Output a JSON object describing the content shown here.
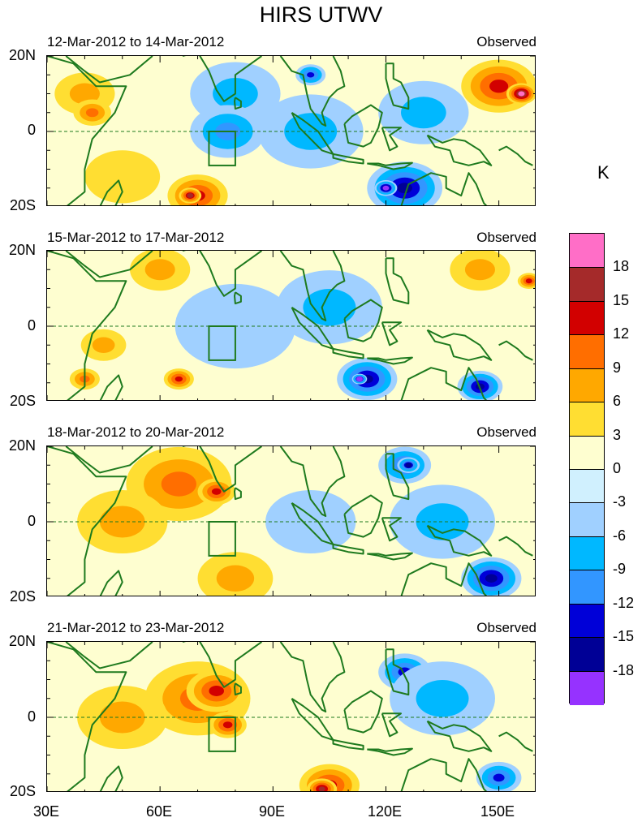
{
  "title": "HIRS UTWV",
  "colorbar": {
    "unit": "K",
    "labels": [
      "18",
      "15",
      "12",
      "9",
      "6",
      "3",
      "0",
      "-3",
      "-6",
      "-9",
      "-12",
      "-15",
      "-18"
    ],
    "colors": [
      "#ff6ec7",
      "#a52a2a",
      "#d20000",
      "#ff6e00",
      "#ffa800",
      "#ffde32",
      "#fefed0",
      "#d0f0fe",
      "#a0d0ff",
      "#00b8ff",
      "#3296ff",
      "#0000d8",
      "#000096",
      "#9632ff"
    ]
  },
  "axes": {
    "y_labels": [
      "20N",
      "0",
      "20S"
    ],
    "x_labels": [
      "30E",
      "60E",
      "90E",
      "120E",
      "150E"
    ],
    "lon_range": [
      30,
      160
    ],
    "lat_range": [
      -20,
      20
    ]
  },
  "panels": [
    {
      "date_range": "12-Mar-2012 to 14-Mar-2012",
      "label": "Observed"
    },
    {
      "date_range": "15-Mar-2012 to 17-Mar-2012",
      "label": "Observed"
    },
    {
      "date_range": "18-Mar-2012 to 20-Mar-2012",
      "label": "Observed"
    },
    {
      "date_range": "21-Mar-2012 to 23-Mar-2012",
      "label": "Observed"
    }
  ],
  "map_data": {
    "field": "UTWV anomaly",
    "units": "K",
    "region_box": {
      "lon": [
        73,
        80
      ],
      "lat": [
        -6,
        0
      ]
    },
    "panels_anomaly_blobs": [
      [
        {
          "lon": 40,
          "lat": 10,
          "value": 6,
          "r": 8
        },
        {
          "lon": 42,
          "lat": 5,
          "value": 9,
          "r": 5
        },
        {
          "lon": 50,
          "lat": -12,
          "value": 3,
          "r": 10
        },
        {
          "lon": 70,
          "lat": -17,
          "value": 12,
          "r": 8
        },
        {
          "lon": 68,
          "lat": -17,
          "value": 15,
          "r": 3
        },
        {
          "lon": 80,
          "lat": 10,
          "value": -6,
          "r": 12
        },
        {
          "lon": 78,
          "lat": 0,
          "value": -9,
          "r": 10
        },
        {
          "lon": 100,
          "lat": 15,
          "value": -12,
          "r": 4
        },
        {
          "lon": 100,
          "lat": 0,
          "value": -6,
          "r": 14
        },
        {
          "lon": 125,
          "lat": -15,
          "value": -15,
          "r": 10
        },
        {
          "lon": 120,
          "lat": -15,
          "value": -18,
          "r": 3
        },
        {
          "lon": 130,
          "lat": 5,
          "value": -6,
          "r": 12
        },
        {
          "lon": 150,
          "lat": 12,
          "value": 12,
          "r": 10
        },
        {
          "lon": 156,
          "lat": 10,
          "value": 18,
          "r": 4
        }
      ],
      [
        {
          "lon": 60,
          "lat": 15,
          "value": 6,
          "r": 8
        },
        {
          "lon": 45,
          "lat": -5,
          "value": 6,
          "r": 6
        },
        {
          "lon": 40,
          "lat": -14,
          "value": 9,
          "r": 4
        },
        {
          "lon": 65,
          "lat": -14,
          "value": 12,
          "r": 4
        },
        {
          "lon": 80,
          "lat": 0,
          "value": -3,
          "r": 16
        },
        {
          "lon": 105,
          "lat": 5,
          "value": -6,
          "r": 14
        },
        {
          "lon": 115,
          "lat": -14,
          "value": -15,
          "r": 8
        },
        {
          "lon": 113,
          "lat": -14,
          "value": -18,
          "r": 2
        },
        {
          "lon": 145,
          "lat": -16,
          "value": -15,
          "r": 6
        },
        {
          "lon": 145,
          "lat": 15,
          "value": 6,
          "r": 8
        },
        {
          "lon": 158,
          "lat": 12,
          "value": 12,
          "r": 3
        }
      ],
      [
        {
          "lon": 65,
          "lat": 10,
          "value": 9,
          "r": 14
        },
        {
          "lon": 75,
          "lat": 8,
          "value": 12,
          "r": 5
        },
        {
          "lon": 50,
          "lat": 0,
          "value": 6,
          "r": 12
        },
        {
          "lon": 80,
          "lat": -15,
          "value": 6,
          "r": 10
        },
        {
          "lon": 100,
          "lat": 0,
          "value": -3,
          "r": 12
        },
        {
          "lon": 125,
          "lat": 15,
          "value": -12,
          "r": 7
        },
        {
          "lon": 126,
          "lat": 15,
          "value": -15,
          "r": 3
        },
        {
          "lon": 135,
          "lat": 0,
          "value": -6,
          "r": 14
        },
        {
          "lon": 148,
          "lat": -15,
          "value": -15,
          "r": 8
        }
      ],
      [
        {
          "lon": 70,
          "lat": 5,
          "value": 9,
          "r": 14
        },
        {
          "lon": 75,
          "lat": 7,
          "value": 12,
          "r": 8
        },
        {
          "lon": 78,
          "lat": -2,
          "value": 12,
          "r": 5
        },
        {
          "lon": 50,
          "lat": 0,
          "value": 6,
          "r": 12
        },
        {
          "lon": 105,
          "lat": -18,
          "value": 12,
          "r": 8
        },
        {
          "lon": 103,
          "lat": -19,
          "value": 15,
          "r": 4
        },
        {
          "lon": 125,
          "lat": 12,
          "value": -12,
          "r": 7
        },
        {
          "lon": 135,
          "lat": 5,
          "value": -6,
          "r": 14
        },
        {
          "lon": 150,
          "lat": -16,
          "value": -12,
          "r": 6
        }
      ]
    ]
  }
}
